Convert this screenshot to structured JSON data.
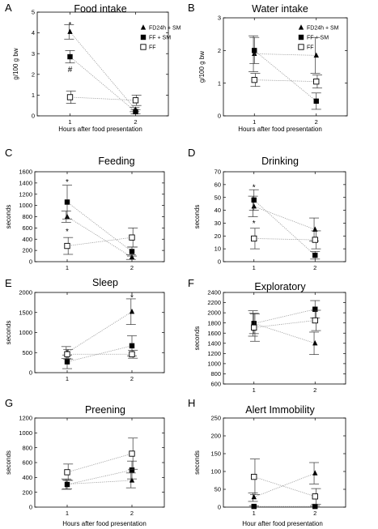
{
  "chart_data": [
    {
      "id": "A",
      "letter": "A",
      "type": "line",
      "title": "Food intake",
      "xlabel": "Hours after food presentation",
      "ylabel": "g/100 g bw",
      "xlim": [
        0.5,
        2.5
      ],
      "ylim": [
        0,
        5
      ],
      "xticks": [
        1,
        2
      ],
      "yticks": [
        0,
        1,
        2,
        3,
        4,
        5
      ],
      "legend": {
        "position": "top-right",
        "entries": [
          "FD24h + SM",
          "FF + SM",
          "FF"
        ]
      },
      "series": [
        {
          "name": "FD24h + SM",
          "marker": "triangle",
          "x": [
            1,
            2
          ],
          "y": [
            4.05,
            0.3
          ],
          "err": [
            0.35,
            0.1
          ]
        },
        {
          "name": "FF + SM",
          "marker": "square",
          "x": [
            1,
            2
          ],
          "y": [
            2.85,
            0.2
          ],
          "err": [
            0.3,
            0.1
          ]
        },
        {
          "name": "FF",
          "marker": "open-square",
          "x": [
            1,
            2
          ],
          "y": [
            0.9,
            0.75
          ],
          "err": [
            0.3,
            0.25
          ]
        }
      ],
      "annotations": [
        {
          "text": "*",
          "x": 1,
          "y": 4.4
        },
        {
          "text": "#",
          "x": 1,
          "y": 2.25
        }
      ]
    },
    {
      "id": "B",
      "letter": "B",
      "type": "line",
      "title": "Water intake",
      "xlabel": "Hours after food presentation",
      "ylabel": "g/100 g bw",
      "xlim": [
        0.5,
        2.5
      ],
      "ylim": [
        0,
        3
      ],
      "xticks": [
        1,
        2
      ],
      "yticks": [
        0,
        1,
        2,
        3
      ],
      "legend": {
        "position": "top-right",
        "entries": [
          "FD24h + SM",
          "FF + SM",
          "FF"
        ]
      },
      "series": [
        {
          "name": "FD24h + SM",
          "marker": "triangle",
          "x": [
            1,
            2
          ],
          "y": [
            1.9,
            1.85
          ],
          "err": [
            0.55,
            0.55
          ]
        },
        {
          "name": "FF + SM",
          "marker": "square",
          "x": [
            1,
            2
          ],
          "y": [
            2.0,
            0.45
          ],
          "err": [
            0.4,
            0.25
          ]
        },
        {
          "name": "FF",
          "marker": "open-square",
          "x": [
            1,
            2
          ],
          "y": [
            1.1,
            1.05
          ],
          "err": [
            0.2,
            0.2
          ]
        }
      ],
      "annotations": []
    },
    {
      "id": "C",
      "letter": "C",
      "type": "line",
      "title": "Feeding",
      "xlabel": "",
      "ylabel": "seconds",
      "xlim": [
        0.5,
        2.5
      ],
      "ylim": [
        0,
        1600
      ],
      "xticks": [
        1,
        2
      ],
      "yticks": [
        0,
        200,
        400,
        600,
        800,
        1000,
        1200,
        1400,
        1600
      ],
      "series": [
        {
          "name": "FD24h + SM",
          "marker": "triangle",
          "x": [
            1,
            2
          ],
          "y": [
            800,
            80
          ],
          "err": [
            100,
            40
          ]
        },
        {
          "name": "FF + SM",
          "marker": "square",
          "x": [
            1,
            2
          ],
          "y": [
            1060,
            180
          ],
          "err": [
            300,
            80
          ]
        },
        {
          "name": "FF",
          "marker": "open-square",
          "x": [
            1,
            2
          ],
          "y": [
            280,
            430
          ],
          "err": [
            150,
            170
          ]
        }
      ],
      "annotations": [
        {
          "text": "*",
          "x": 1,
          "y": 1420
        },
        {
          "text": "*",
          "x": 1,
          "y": 540
        }
      ]
    },
    {
      "id": "D",
      "letter": "D",
      "type": "line",
      "title": "Drinking",
      "xlabel": "",
      "ylabel": "seconds",
      "xlim": [
        0.5,
        2.5
      ],
      "ylim": [
        0,
        70
      ],
      "xticks": [
        1,
        2
      ],
      "yticks": [
        0,
        10,
        20,
        30,
        40,
        50,
        60,
        70
      ],
      "series": [
        {
          "name": "FD24h + SM",
          "marker": "triangle",
          "x": [
            1,
            2
          ],
          "y": [
            43,
            25
          ],
          "err": [
            8,
            9
          ]
        },
        {
          "name": "FF + SM",
          "marker": "square",
          "x": [
            1,
            2
          ],
          "y": [
            48,
            5
          ],
          "err": [
            8,
            3
          ]
        },
        {
          "name": "FF",
          "marker": "open-square",
          "x": [
            1,
            2
          ],
          "y": [
            18,
            17
          ],
          "err": [
            8,
            7
          ]
        }
      ],
      "annotations": [
        {
          "text": "*",
          "x": 1,
          "y": 58
        },
        {
          "text": "*",
          "x": 1,
          "y": 30
        }
      ]
    },
    {
      "id": "E",
      "letter": "E",
      "type": "line",
      "title": "Sleep",
      "xlabel": "",
      "ylabel": "seconds",
      "xlim": [
        0.5,
        2.5
      ],
      "ylim": [
        0,
        2000
      ],
      "xticks": [
        1,
        2
      ],
      "yticks": [
        0,
        500,
        1000,
        1500,
        2000
      ],
      "series": [
        {
          "name": "FD24h + SM",
          "marker": "triangle",
          "x": [
            1,
            2
          ],
          "y": [
            500,
            1520
          ],
          "err": [
            150,
            320
          ]
        },
        {
          "name": "FF + SM",
          "marker": "square",
          "x": [
            1,
            2
          ],
          "y": [
            270,
            670
          ],
          "err": [
            170,
            250
          ]
        },
        {
          "name": "FF",
          "marker": "open-square",
          "x": [
            1,
            2
          ],
          "y": [
            460,
            460
          ],
          "err": [
            120,
            100
          ]
        }
      ],
      "annotations": [
        {
          "text": "*",
          "x": 2,
          "y": 1880
        }
      ]
    },
    {
      "id": "F",
      "letter": "F",
      "type": "line",
      "title": "Exploratory",
      "xlabel": "",
      "ylabel": "seconds",
      "xlim": [
        0.5,
        2.5
      ],
      "ylim": [
        600,
        2400
      ],
      "xticks": [
        1,
        2
      ],
      "yticks": [
        600,
        800,
        1000,
        1200,
        1400,
        1600,
        1800,
        2000,
        2200,
        2400
      ],
      "series": [
        {
          "name": "FD24h + SM",
          "marker": "triangle",
          "x": [
            1,
            2
          ],
          "y": [
            1790,
            1400
          ],
          "err": [
            250,
            220
          ]
        },
        {
          "name": "FF + SM",
          "marker": "square",
          "x": [
            1,
            2
          ],
          "y": [
            1790,
            2070
          ],
          "err": [
            200,
            170
          ]
        },
        {
          "name": "FF",
          "marker": "open-square",
          "x": [
            1,
            2
          ],
          "y": [
            1710,
            1850
          ],
          "err": [
            270,
            200
          ]
        }
      ],
      "annotations": []
    },
    {
      "id": "G",
      "letter": "G",
      "type": "line",
      "title": "Preening",
      "xlabel": "Hours after food presentation",
      "ylabel": "seconds",
      "xlim": [
        0.5,
        2.5
      ],
      "ylim": [
        0,
        1200
      ],
      "xticks": [
        1,
        2
      ],
      "yticks": [
        0,
        200,
        400,
        600,
        800,
        1000,
        1200
      ],
      "series": [
        {
          "name": "FD24h + SM",
          "marker": "triangle",
          "x": [
            1,
            2
          ],
          "y": [
            310,
            360
          ],
          "err": [
            70,
            100
          ]
        },
        {
          "name": "FF + SM",
          "marker": "square",
          "x": [
            1,
            2
          ],
          "y": [
            305,
            500
          ],
          "err": [
            60,
            120
          ]
        },
        {
          "name": "FF",
          "marker": "open-square",
          "x": [
            1,
            2
          ],
          "y": [
            470,
            720
          ],
          "err": [
            110,
            210
          ]
        }
      ],
      "annotations": []
    },
    {
      "id": "H",
      "letter": "H",
      "type": "line",
      "title": "Alert Immobility",
      "xlabel": "Hour after food presentation",
      "ylabel": "seconds",
      "xlim": [
        0.5,
        2.5
      ],
      "ylim": [
        0,
        250
      ],
      "xticks": [
        1,
        2
      ],
      "yticks": [
        0,
        50,
        100,
        150,
        200,
        250
      ],
      "series": [
        {
          "name": "FD24h + SM",
          "marker": "triangle",
          "x": [
            1,
            2
          ],
          "y": [
            28,
            95
          ],
          "err": [
            12,
            30
          ]
        },
        {
          "name": "FF + SM",
          "marker": "square",
          "x": [
            1,
            2
          ],
          "y": [
            2,
            2
          ],
          "err": [
            2,
            2
          ]
        },
        {
          "name": "FF",
          "marker": "open-square",
          "x": [
            1,
            2
          ],
          "y": [
            85,
            30
          ],
          "err": [
            50,
            22
          ]
        }
      ],
      "annotations": []
    }
  ]
}
